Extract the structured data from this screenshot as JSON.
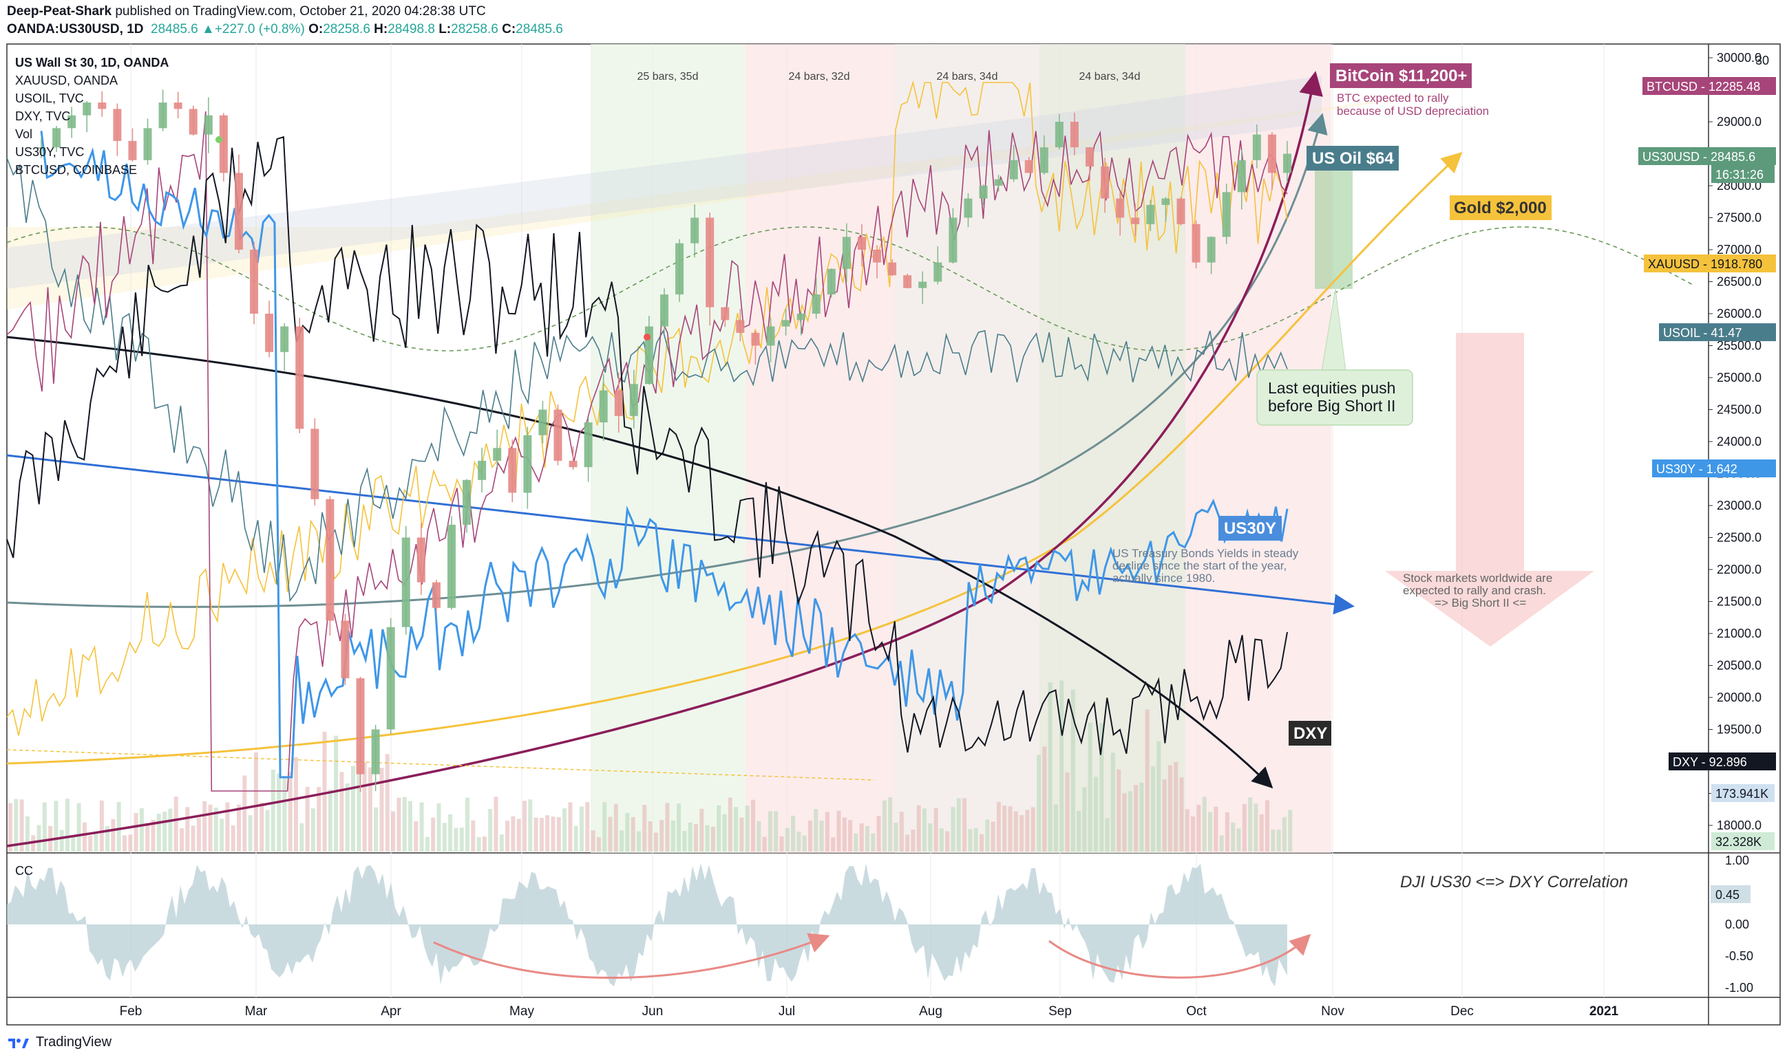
{
  "header": {
    "author": "Deep-Peat-Shark",
    "published_on": "published on TradingView.com, October 21, 2020 04:28:38 UTC",
    "symbol": "OANDA:US30USD, 1D",
    "last": "28485.6",
    "change": "+227.0 (+0.8%)",
    "o_label": "O:",
    "o": "28258.6",
    "h_label": "H:",
    "h": "28498.8",
    "l_label": "L:",
    "l": "28258.6",
    "c_label": "C:",
    "c": "28485.6"
  },
  "legend": {
    "main": "US Wall St 30, 1D, OANDA",
    "items": [
      "XAUUSD, OANDA",
      "USOIL, TVC",
      "DXY, TVC",
      "Vol",
      "US30Y, TVC",
      "BTCUSD, COINBASE"
    ]
  },
  "colors": {
    "up": "#26a69a",
    "down": "#ef5350",
    "gold": "#f5c23b",
    "oil": "#5d8a93",
    "btc": "#8b1e5a",
    "dxy": "#131722",
    "us30y": "#3f97e8",
    "dji_line": "#6f8fa0"
  },
  "chart_data": {
    "type": "line",
    "title": "",
    "x_ticks": [
      "Feb",
      "Mar",
      "Apr",
      "May",
      "Jun",
      "Jul",
      "Aug",
      "Sep",
      "Oct",
      "Nov",
      "Dec",
      "2021"
    ],
    "y_ticks": [
      "30000.0",
      "29000.0",
      "28000.0",
      "27500.0",
      "27000.0",
      "26500.0",
      "26000.0",
      "25500.0",
      "25000.0",
      "24500.0",
      "24000.0",
      "23500.0",
      "23000.0",
      "22500.0",
      "22000.0",
      "21500.0",
      "21000.0",
      "20500.0",
      "20000.0",
      "19500.0",
      "19000.0",
      "18500.0",
      "18000.0"
    ],
    "y_axis_top": "30",
    "ylim": [
      18000,
      30000
    ],
    "price_labels": [
      {
        "name": "BTCUSD",
        "value": "12285.48",
        "color": "#a7457a"
      },
      {
        "name": "US30USD",
        "value": "28485.6",
        "color": "#5d9a7c"
      },
      {
        "name": "",
        "value": "16:31:26",
        "color": "#5d9a7c"
      },
      {
        "name": "XAUUSD",
        "value": "1918.780",
        "color": "#f5c23b"
      },
      {
        "name": "USOIL",
        "value": "41.47",
        "color": "#4a7d8c"
      },
      {
        "name": "US30Y",
        "value": "1.642",
        "color": "#3f97e8"
      },
      {
        "name": "DXY",
        "value": "92.896",
        "color": "#131722"
      },
      {
        "name": "",
        "value": "173.941K",
        "color": "#cfe0f0"
      },
      {
        "name": "",
        "value": "32.328K",
        "color": "#cfead6"
      }
    ],
    "bar_counts": [
      "25 bars, 35d",
      "24 bars, 32d",
      "24 bars, 34d",
      "24 bars, 34d"
    ],
    "annotations": {
      "btc_title": "BitCoin $11,200+",
      "btc_note1": "BTC expected to rally",
      "btc_note2": "because of USD depreciation",
      "oil": "US Oil $64",
      "gold": "Gold $2,000",
      "equities1": "Last equities push",
      "equities2": "before Big Short II",
      "us30y": "US30Y",
      "treasury1": "US Treasury Bonds Yields in steady",
      "treasury2": "decline since the start of the year,",
      "treasury3": "actually since 1980.",
      "stock1": "Stock markets worldwide are",
      "stock2": "expected to rally and crash.",
      "stock3": "=> Big Short II <=",
      "dxy": "DXY",
      "cc_title": "DJI US30 <=> DXY Correlation"
    },
    "indicator": {
      "name": "CC",
      "y_ticks": [
        "1.00",
        "0.00",
        "-0.50",
        "-1.00"
      ],
      "last_value": "0.45"
    },
    "series_close": {
      "dji": [
        28600,
        28900,
        29100,
        29300,
        29200,
        28700,
        28400,
        28900,
        29300,
        29200,
        28800,
        29100,
        28200,
        27000,
        26000,
        25400,
        25800,
        24200,
        23100,
        21200,
        20300,
        18800,
        19500,
        21100,
        22500,
        21800,
        21400,
        22700,
        23400,
        23700,
        23900,
        23200,
        24100,
        24500,
        23700,
        23600,
        24300,
        24800,
        24400,
        24900,
        25800,
        26300,
        27100,
        27500,
        26100,
        25900,
        25700,
        25500,
        25800,
        25900,
        26000,
        26300,
        26700,
        27200,
        27000,
        26800,
        26600,
        26400,
        26500,
        26800,
        27500,
        27800,
        28000,
        28100,
        28400,
        28200,
        28600,
        29000,
        28600,
        28300,
        27800,
        27500,
        27400,
        27700,
        27800,
        27400,
        26800,
        27200,
        27900,
        28400,
        28800,
        28200,
        28500
      ]
    }
  }
}
